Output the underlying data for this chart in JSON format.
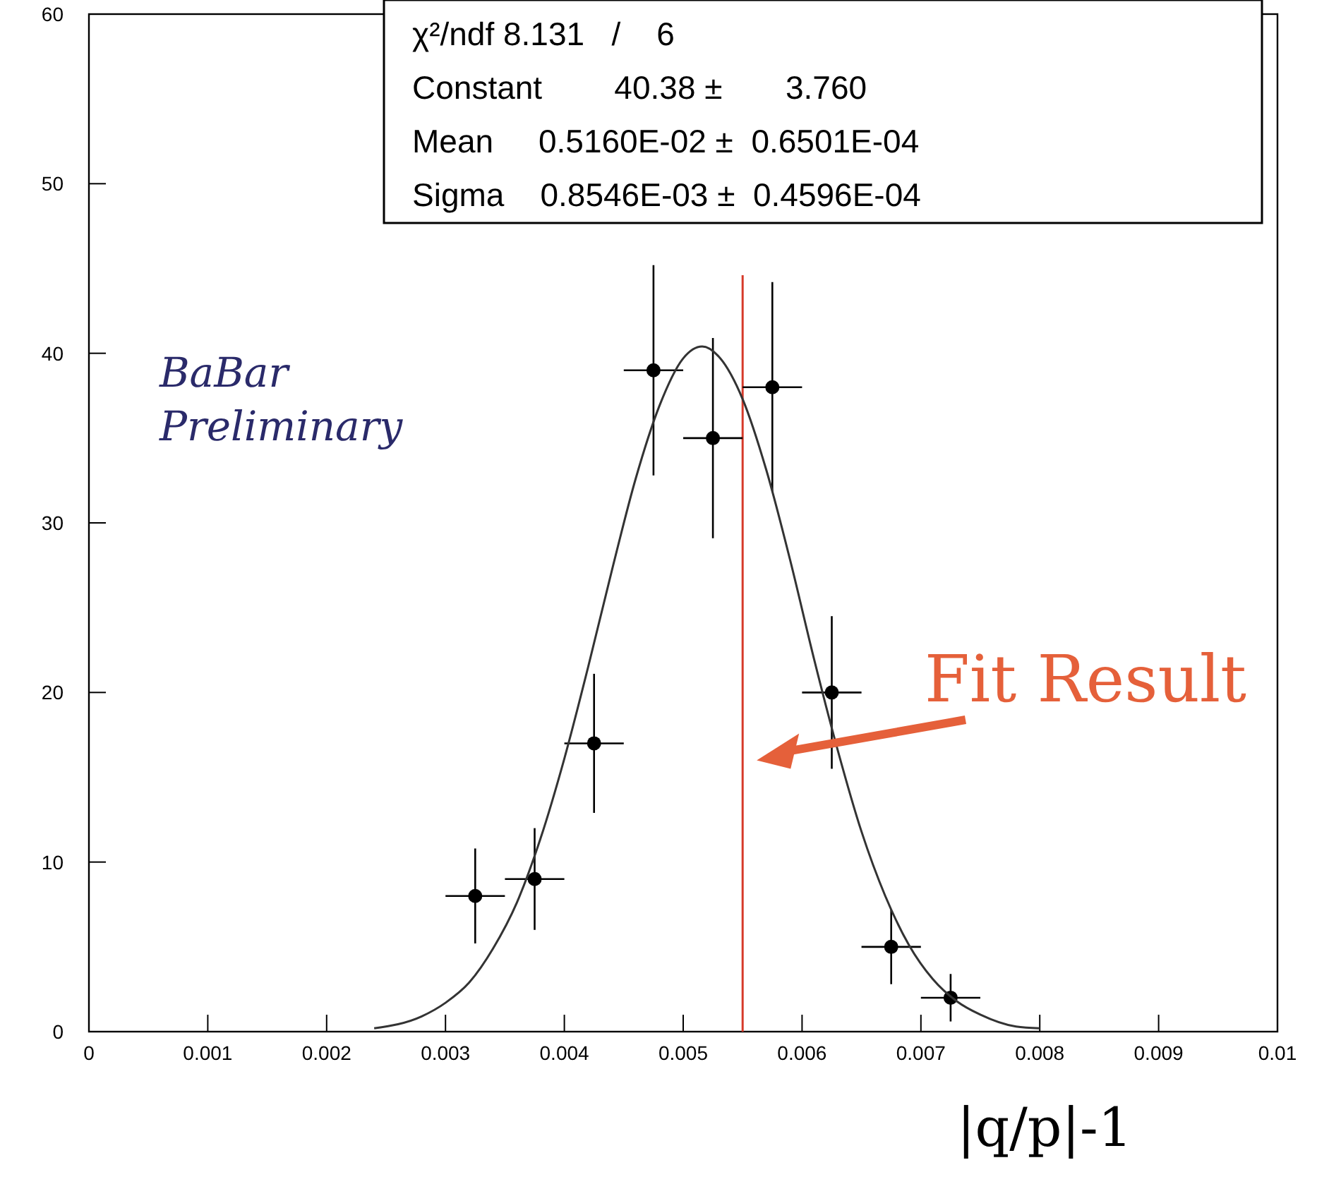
{
  "chart_data": {
    "type": "scatter",
    "xlabel": "|q/p|-1",
    "xlim": [
      0,
      0.01
    ],
    "ylim": [
      0,
      60
    ],
    "xticks": [
      0,
      0.001,
      0.002,
      0.003,
      0.004,
      0.005,
      0.006,
      0.007,
      0.008,
      0.009,
      0.01
    ],
    "yticks": [
      0,
      10,
      20,
      30,
      40,
      50,
      60
    ],
    "grid": false,
    "marker": "circle",
    "series": [
      {
        "color": "#000000",
        "x": [
          0.00325,
          0.00375,
          0.00425,
          0.00475,
          0.00525,
          0.00575,
          0.00625,
          0.00675,
          0.00725
        ],
        "values": [
          8,
          9,
          17,
          39,
          35,
          38,
          20,
          5,
          2
        ],
        "errors": [
          2.8,
          3,
          4.1,
          6.2,
          5.9,
          6.2,
          4.5,
          2.2,
          1.4
        ],
        "xerrors": [
          0.00025,
          0.00025,
          0.00025,
          0.00025,
          0.00025,
          0.00025,
          0.00025,
          0.00025,
          0.00025
        ]
      },
      {
        "type": "line",
        "color": "#333333",
        "line_style": "solid",
        "marker": "none",
        "x": [
          0.0024,
          0.0028,
          0.003,
          0.0032,
          0.0034,
          0.0036,
          0.0038,
          0.004,
          0.0042,
          0.0044,
          0.0046,
          0.0048,
          0.005,
          0.00516,
          0.0053,
          0.0055,
          0.0057,
          0.0059,
          0.0061,
          0.0063,
          0.0065,
          0.0067,
          0.0069,
          0.0071,
          0.0073,
          0.0075,
          0.0078,
          0.008
        ],
        "values": [
          0.2,
          0.9,
          1.7,
          2.9,
          4.9,
          7.6,
          11.4,
          16.1,
          21.5,
          27.2,
          32.6,
          36.9,
          39.7,
          40.4,
          39.8,
          37.3,
          33.1,
          27.8,
          22,
          16.6,
          11.8,
          8,
          5.1,
          3.1,
          1.8,
          1,
          0.3,
          0.2
        ]
      }
    ],
    "ref_lines": [
      {
        "axis": "x",
        "value": 0.0055,
        "color": "#d63a2a"
      }
    ],
    "annotations": [
      "χ²/ndf 8.131   /    6",
      "Constant        40.38 ±       3.760",
      "Mean     0.5160E-02 ±  0.6501E-04",
      "Sigma    0.8546E-03 ±  0.4596E-04",
      "BaBar\nPreliminary",
      {
        "text": "Fit Result",
        "x": 0.0055,
        "y": 16
      }
    ]
  }
}
